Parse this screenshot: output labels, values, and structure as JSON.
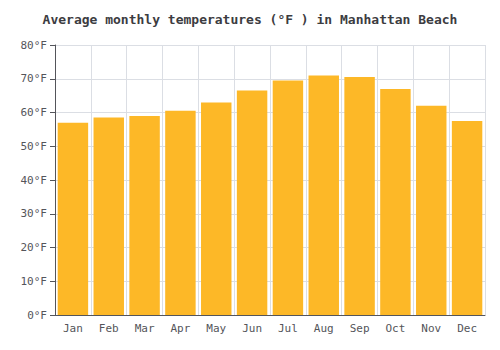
{
  "chart_data": {
    "type": "bar",
    "title": "Average monthly temperatures (°F ) in Manhattan Beach",
    "categories": [
      "Jan",
      "Feb",
      "Mar",
      "Apr",
      "May",
      "Jun",
      "Jul",
      "Aug",
      "Sep",
      "Oct",
      "Nov",
      "Dec"
    ],
    "values": [
      57,
      58.5,
      59,
      60.5,
      63,
      66.5,
      69.5,
      71,
      70.5,
      67,
      62,
      57.5
    ],
    "color": "#FDB827",
    "ylim": [
      0,
      80
    ],
    "yticks": [
      {
        "value": 0,
        "label": "0°F"
      },
      {
        "value": 10,
        "label": "10°F"
      },
      {
        "value": 20,
        "label": "20°F"
      },
      {
        "value": 30,
        "label": "30°F"
      },
      {
        "value": 40,
        "label": "40°F"
      },
      {
        "value": 50,
        "label": "50°F"
      },
      {
        "value": 60,
        "label": "60°F"
      },
      {
        "value": 70,
        "label": "70°F"
      },
      {
        "value": 80,
        "label": "80°F"
      }
    ],
    "grid": true
  }
}
